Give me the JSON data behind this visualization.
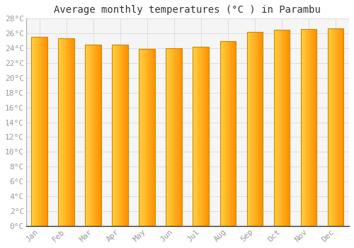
{
  "months": [
    "Jan",
    "Feb",
    "Mar",
    "Apr",
    "May",
    "Jun",
    "Jul",
    "Aug",
    "Sep",
    "Oct",
    "Nov",
    "Dec"
  ],
  "temperatures": [
    25.5,
    25.3,
    24.5,
    24.5,
    23.9,
    24.0,
    24.2,
    25.0,
    26.2,
    26.5,
    26.6,
    26.7
  ],
  "title": "Average monthly temperatures (°C ) in Parambu",
  "ylim": [
    0,
    28
  ],
  "ytick_step": 2,
  "bar_color_center": "#FFD040",
  "bar_color_edge": "#FFA500",
  "bar_border_color": "#CC8800",
  "background_color": "#FFFFFF",
  "plot_bg_color": "#F5F5F5",
  "grid_color": "#DDDDDD",
  "title_fontsize": 10,
  "tick_fontsize": 8,
  "tick_color": "#999999",
  "font_family": "monospace",
  "bar_width": 0.6
}
